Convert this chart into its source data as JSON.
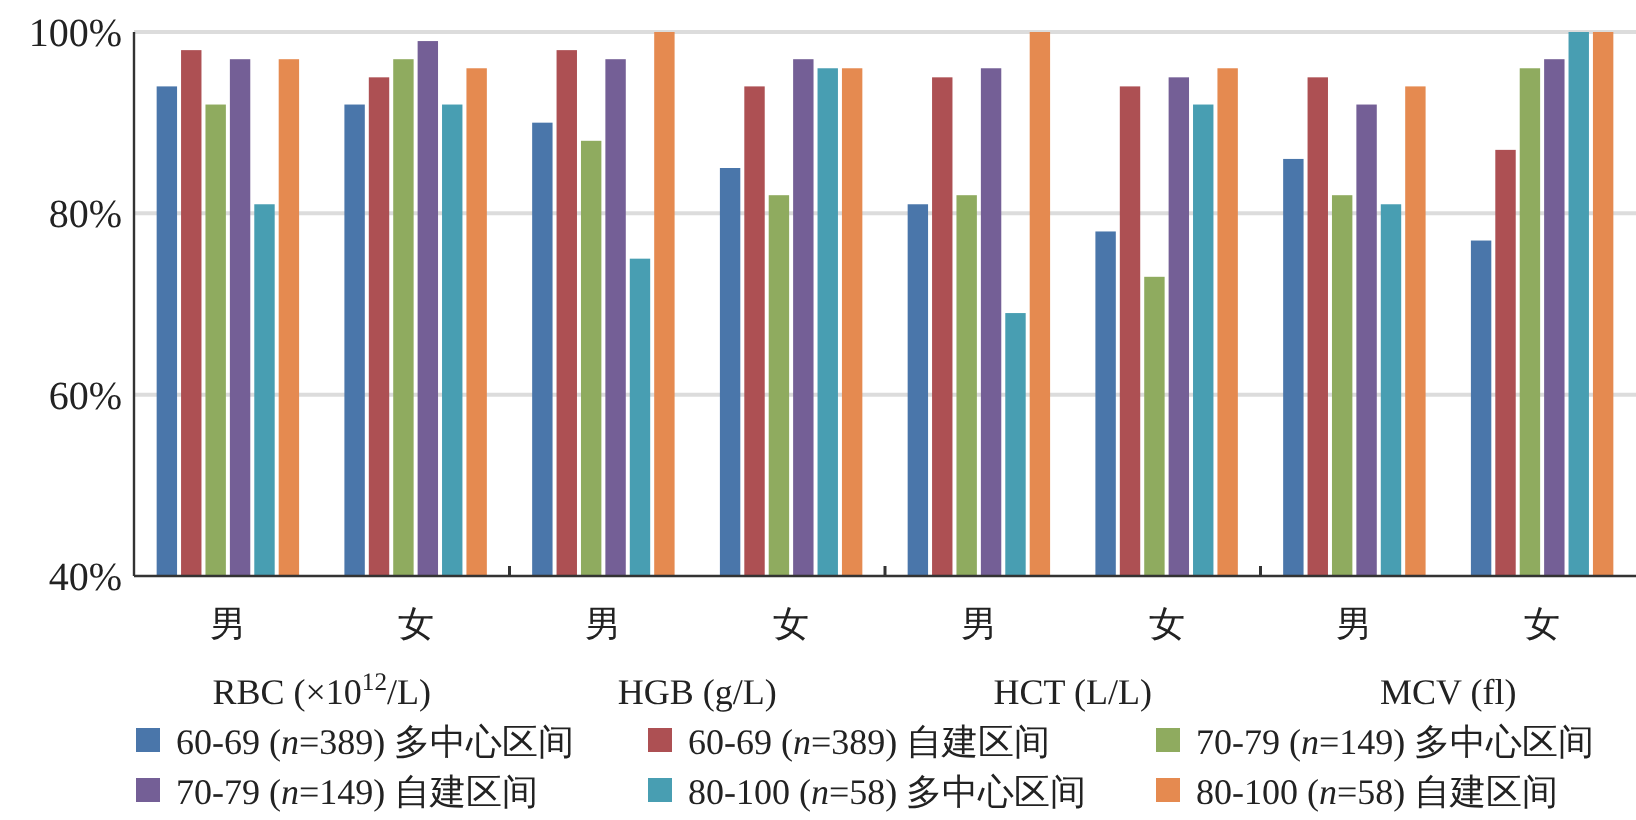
{
  "chart_data": {
    "type": "bar",
    "categories": [
      "男",
      "女",
      "男",
      "女",
      "男",
      "女",
      "男",
      "女"
    ],
    "annotations": [
      "RBC (×10$^{12}$/L)",
      "HGB (g/L)",
      "HCT (L/L)",
      "MCV (fl)"
    ],
    "series": [
      {
        "name": "60-69 (*n*=389) 多中心区间",
        "color": "#4a76aa",
        "values": [
          94,
          92,
          90,
          85,
          81,
          78,
          86,
          77
        ]
      },
      {
        "name": "60-69 (*n*=389) 自建区间",
        "color": "#ad5053",
        "values": [
          98,
          95,
          98,
          94,
          95,
          94,
          95,
          87
        ]
      },
      {
        "name": "70-79 (*n*=149) 多中心区间",
        "color": "#8fab5f",
        "values": [
          92,
          97,
          88,
          82,
          82,
          73,
          82,
          96
        ]
      },
      {
        "name": "70-79 (*n*=149) 自建区间",
        "color": "#745f96",
        "values": [
          97,
          99,
          97,
          97,
          96,
          95,
          92,
          97
        ]
      },
      {
        "name": "80-100 (*n*=58) 多中心区间",
        "color": "#489eb2",
        "values": [
          81,
          92,
          75,
          96,
          69,
          92,
          81,
          100
        ]
      },
      {
        "name": "80-100 (*n*=58) 自建区间",
        "color": "#e58a50",
        "values": [
          97,
          96,
          100,
          96,
          100,
          96,
          94,
          100
        ]
      }
    ],
    "ylim": [
      40,
      100
    ],
    "yticks": [
      {
        "value": 40,
        "label": "40%"
      },
      {
        "value": 60,
        "label": "60%"
      },
      {
        "value": 80,
        "label": "80%"
      },
      {
        "value": 100,
        "label": "100%"
      }
    ],
    "grid": "y",
    "legend": "bottom"
  }
}
